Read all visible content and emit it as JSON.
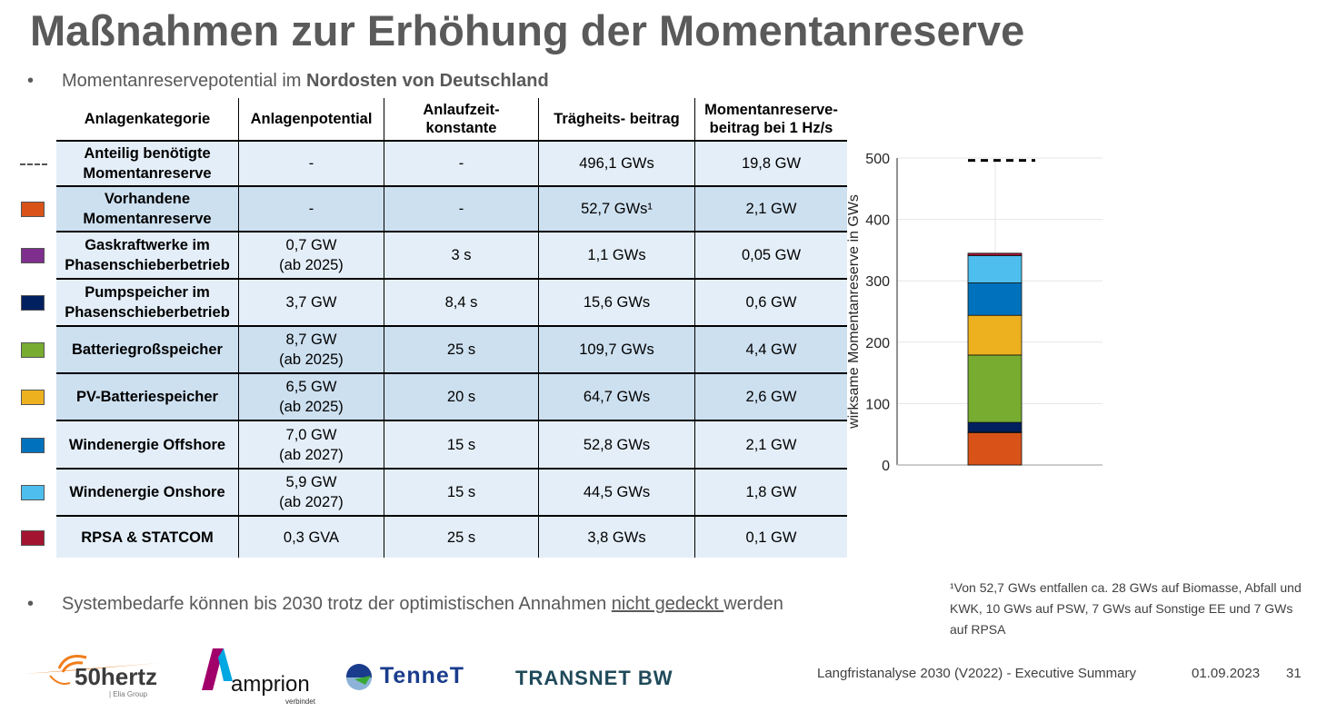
{
  "title": "Maßnahmen zur Erhöhung der Momentanreserve",
  "bullet1": {
    "prefix": "Momentanreservepotential im ",
    "bold": "Nordosten von Deutschland"
  },
  "bullet2": {
    "before": "Systembedarfe können bis 2030 trotz der optimistischen Annahmen ",
    "underlined": "nicht gedeckt ",
    "after": "werden"
  },
  "table": {
    "headers": [
      "Anlagenkategorie",
      "Anlagenpotential",
      "Anlaufzeit-\nkonstante",
      "Trägheits-\nbeitrag",
      "Momentanreserve-\nbeitrag bei 1 Hz/s"
    ],
    "rows": [
      {
        "legend": "dash",
        "color": "#555555",
        "shade": "light",
        "cells": [
          "Anteilig benötigte\nMomentanreserve",
          "-",
          "-",
          "496,1 GWs",
          "19,8 GW"
        ]
      },
      {
        "legend": "swatch",
        "color": "#d95319",
        "shade": "dark",
        "cells": [
          "Vorhandene\nMomentanreserve",
          "-",
          "-",
          "52,7 GWs¹",
          "2,1 GW"
        ]
      },
      {
        "legend": "swatch",
        "color": "#7e2f8e",
        "shade": "light",
        "cells": [
          "Gaskraftwerke im\nPhasenschieberbetrieb",
          "0,7 GW\n(ab 2025)",
          "3 s",
          "1,1 GWs",
          "0,05 GW"
        ]
      },
      {
        "legend": "swatch",
        "color": "#012060",
        "shade": "light",
        "cells": [
          "Pumpspeicher im\nPhasenschieberbetrieb",
          "3,7 GW",
          "8,4 s",
          "15,6 GWs",
          "0,6 GW"
        ]
      },
      {
        "legend": "swatch",
        "color": "#77ac30",
        "shade": "dark",
        "cells": [
          "Batteriegroßspeicher",
          "8,7 GW\n(ab 2025)",
          "25 s",
          "109,7 GWs",
          "4,4 GW"
        ]
      },
      {
        "legend": "swatch",
        "color": "#edb120",
        "shade": "dark",
        "cells": [
          "PV-Batteriespeicher",
          "6,5 GW\n(ab 2025)",
          "20 s",
          "64,7 GWs",
          "2,6 GW"
        ]
      },
      {
        "legend": "swatch",
        "color": "#0072bd",
        "shade": "light",
        "cells": [
          "Windenergie Offshore",
          "7,0 GW\n(ab 2027)",
          "15 s",
          "52,8 GWs",
          "2,1 GW"
        ]
      },
      {
        "legend": "swatch",
        "color": "#4dbeee",
        "shade": "light",
        "cells": [
          "Windenergie Onshore",
          "5,9 GW\n(ab 2027)",
          "15 s",
          "44,5 GWs",
          "1,8 GW"
        ]
      },
      {
        "legend": "swatch",
        "color": "#a2142f",
        "shade": "light",
        "cells": [
          "RPSA & STATCOM",
          "0,3 GVA",
          "25 s",
          "3,8 GWs",
          "0,1 GW"
        ]
      }
    ]
  },
  "chart_data": {
    "type": "bar",
    "stacked": true,
    "ylabel": "wirksame Momentanreserve in GWs",
    "ylim": [
      0,
      500
    ],
    "yticks": [
      "0",
      "100",
      "200",
      "300",
      "400",
      "500"
    ],
    "grid": true,
    "series": [
      {
        "name": "Vorhandene Momentanreserve",
        "value": 52.7,
        "color": "#d95319"
      },
      {
        "name": "Gaskraftwerke im Phasenschieberbetrieb",
        "value": 1.1,
        "color": "#7e2f8e"
      },
      {
        "name": "Pumpspeicher im Phasenschieberbetrieb",
        "value": 15.6,
        "color": "#012060"
      },
      {
        "name": "Batteriegroßspeicher",
        "value": 109.7,
        "color": "#77ac30"
      },
      {
        "name": "PV-Batteriespeicher",
        "value": 64.7,
        "color": "#edb120"
      },
      {
        "name": "Windenergie Offshore",
        "value": 52.8,
        "color": "#0072bd"
      },
      {
        "name": "Windenergie Onshore",
        "value": 44.5,
        "color": "#4dbeee"
      },
      {
        "name": "RPSA & STATCOM",
        "value": 3.8,
        "color": "#a2142f"
      }
    ],
    "target": {
      "name": "Anteilig benötigte Momentanreserve",
      "value": 496.1
    }
  },
  "footnote": "¹Von 52,7 GWs entfallen ca. 28 GWs auf Biomasse, Abfall und KWK, 10 GWs auf PSW, 7 GWs auf Sonstige EE und 7 GWs auf RPSA",
  "footer": {
    "doc": "Langfristanalyse 2030 (V2022) - Executive Summary",
    "date": "01.09.2023",
    "page": "31"
  },
  "logos": {
    "fiftyhertz": "50hertz",
    "fiftyhertz_sub": "| Elia Group",
    "amprion": "amprion",
    "amprion_sub": "verbindet",
    "tennet": "TenneT",
    "transnet": "TRANSNET BW"
  }
}
